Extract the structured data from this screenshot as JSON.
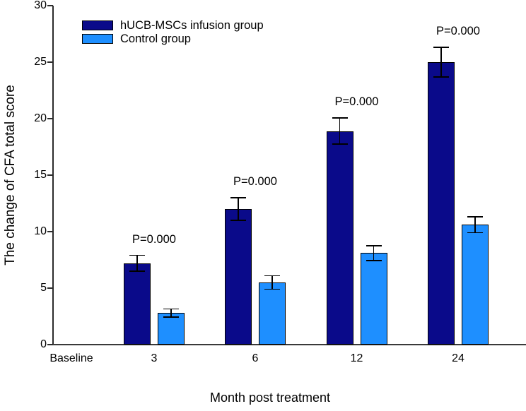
{
  "chart_data": {
    "type": "bar",
    "title": "",
    "ylabel": "The change of CFA total score",
    "xlabel": "Month post treatment",
    "categories": [
      "Baseline",
      "3",
      "6",
      "12",
      "24"
    ],
    "series": [
      {
        "name": "hUCB-MSCs infusion group",
        "color": "#0a0a8a",
        "values": [
          0,
          7.2,
          12.0,
          18.9,
          25.0
        ],
        "errors": [
          0,
          0.7,
          1.0,
          1.15,
          1.3
        ]
      },
      {
        "name": "Control group",
        "color": "#1e8fff",
        "values": [
          0,
          2.8,
          5.5,
          8.1,
          10.6
        ],
        "errors": [
          0,
          0.35,
          0.6,
          0.65,
          0.7
        ]
      }
    ],
    "p_labels": [
      "",
      "P=0.000",
      "P=0.000",
      "P=0.000",
      "P=0.000"
    ],
    "ylim": [
      0,
      30
    ],
    "yticks": [
      0,
      5,
      10,
      15,
      20,
      25,
      30
    ],
    "grid": false,
    "legend_position": "top-left",
    "error_bar_color": "#000000",
    "bar_border_color": "#000000"
  }
}
